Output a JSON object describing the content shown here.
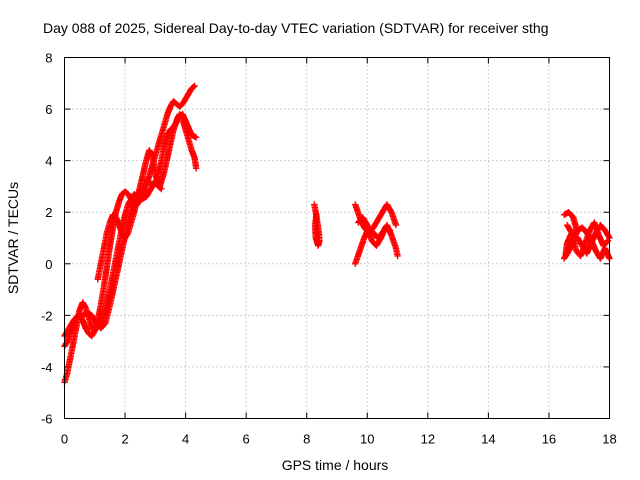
{
  "chart_data": {
    "type": "scatter",
    "title": "Day 088 of 2025, Sidereal Day-to-day VTEC variation (SDTVAR) for receiver sthg",
    "xlabel": "GPS time / hours",
    "ylabel": "SDTVAR / TECUs",
    "xlim": [
      0,
      18
    ],
    "ylim": [
      -6,
      8
    ],
    "xticks": [
      0,
      2,
      4,
      6,
      8,
      10,
      12,
      14,
      16,
      18
    ],
    "yticks": [
      -6,
      -4,
      -2,
      0,
      2,
      4,
      6,
      8
    ],
    "grid": true,
    "marker": "+",
    "color": "#ff0000",
    "series": [
      {
        "name": "SDTVAR",
        "tracks": [
          [
            [
              0.0,
              -4.6
            ],
            [
              0.1,
              -4.2
            ],
            [
              0.2,
              -3.6
            ],
            [
              0.3,
              -3.0
            ],
            [
              0.4,
              -2.4
            ],
            [
              0.5,
              -1.8
            ],
            [
              0.6,
              -1.5
            ],
            [
              0.7,
              -1.7
            ],
            [
              0.8,
              -2.1
            ],
            [
              0.9,
              -2.5
            ],
            [
              1.0,
              -2.6
            ],
            [
              1.1,
              -2.4
            ],
            [
              1.2,
              -2.2
            ],
            [
              1.3,
              -1.9
            ],
            [
              1.4,
              -1.5
            ],
            [
              1.5,
              -1.0
            ],
            [
              1.6,
              -0.4
            ],
            [
              1.7,
              0.2
            ],
            [
              1.8,
              0.8
            ],
            [
              1.9,
              1.4
            ],
            [
              2.0,
              1.9
            ],
            [
              2.1,
              2.3
            ],
            [
              2.2,
              2.5
            ],
            [
              2.3,
              2.7
            ],
            [
              2.4,
              2.6
            ],
            [
              2.5,
              2.6
            ],
            [
              2.6,
              2.8
            ],
            [
              2.7,
              3.1
            ],
            [
              2.8,
              3.4
            ],
            [
              2.9,
              3.8
            ],
            [
              3.0,
              4.2
            ],
            [
              3.1,
              4.6
            ],
            [
              3.2,
              5.0
            ],
            [
              3.3,
              5.4
            ],
            [
              3.4,
              5.8
            ],
            [
              3.5,
              6.1
            ],
            [
              3.6,
              6.3
            ],
            [
              3.7,
              6.2
            ],
            [
              3.8,
              6.1
            ],
            [
              3.9,
              6.2
            ],
            [
              4.0,
              6.4
            ],
            [
              4.1,
              6.6
            ],
            [
              4.2,
              6.8
            ],
            [
              4.3,
              6.9
            ]
          ],
          [
            [
              0.0,
              -3.2
            ],
            [
              0.1,
              -3.0
            ],
            [
              0.2,
              -2.6
            ],
            [
              0.3,
              -2.3
            ],
            [
              0.4,
              -2.1
            ],
            [
              0.5,
              -2.0
            ],
            [
              0.6,
              -2.2
            ],
            [
              0.7,
              -2.5
            ],
            [
              0.8,
              -2.7
            ],
            [
              0.9,
              -2.8
            ],
            [
              1.0,
              -2.6
            ],
            [
              1.1,
              -2.2
            ],
            [
              1.2,
              -1.6
            ],
            [
              1.3,
              -0.9
            ],
            [
              1.4,
              -0.1
            ],
            [
              1.5,
              0.7
            ],
            [
              1.6,
              1.4
            ],
            [
              1.7,
              2.0
            ],
            [
              1.8,
              2.4
            ],
            [
              1.9,
              2.7
            ],
            [
              2.0,
              2.8
            ],
            [
              2.1,
              2.7
            ],
            [
              2.2,
              2.5
            ],
            [
              2.3,
              2.2
            ],
            [
              2.4,
              2.3
            ],
            [
              2.5,
              2.5
            ],
            [
              2.6,
              2.8
            ],
            [
              2.7,
              3.1
            ],
            [
              2.8,
              3.2
            ],
            [
              2.9,
              3.0
            ],
            [
              3.0,
              3.1
            ],
            [
              3.1,
              3.5
            ],
            [
              3.2,
              4.0
            ],
            [
              3.3,
              4.6
            ],
            [
              3.4,
              5.0
            ],
            [
              3.5,
              5.2
            ],
            [
              3.6,
              5.3
            ],
            [
              3.7,
              5.5
            ],
            [
              3.8,
              5.8
            ],
            [
              3.9,
              5.6
            ],
            [
              4.0,
              5.2
            ],
            [
              4.1,
              4.8
            ],
            [
              4.2,
              4.4
            ],
            [
              4.3,
              4.1
            ],
            [
              4.35,
              3.7
            ]
          ],
          [
            [
              0.0,
              -2.8
            ],
            [
              0.15,
              -2.5
            ],
            [
              0.3,
              -2.2
            ],
            [
              0.45,
              -2.0
            ],
            [
              0.6,
              -2.0
            ],
            [
              0.75,
              -1.9
            ],
            [
              0.9,
              -2.0
            ],
            [
              1.05,
              -2.3
            ],
            [
              1.2,
              -2.5
            ],
            [
              1.35,
              -2.3
            ],
            [
              1.5,
              -1.6
            ],
            [
              1.65,
              -0.8
            ],
            [
              1.8,
              0.0
            ],
            [
              1.95,
              0.8
            ],
            [
              2.1,
              1.6
            ],
            [
              2.25,
              2.3
            ],
            [
              2.4,
              2.6
            ],
            [
              2.55,
              2.5
            ],
            [
              2.7,
              2.6
            ],
            [
              2.85,
              2.9
            ],
            [
              3.0,
              3.2
            ],
            [
              3.15,
              3.0
            ],
            [
              3.3,
              3.6
            ],
            [
              3.45,
              4.4
            ],
            [
              3.6,
              5.2
            ],
            [
              3.75,
              5.7
            ],
            [
              3.9,
              5.8
            ],
            [
              4.05,
              5.4
            ],
            [
              4.2,
              5.0
            ],
            [
              4.35,
              4.9
            ]
          ],
          [
            [
              1.1,
              -0.6
            ],
            [
              1.2,
              0.0
            ],
            [
              1.3,
              0.6
            ],
            [
              1.4,
              1.2
            ],
            [
              1.5,
              1.6
            ],
            [
              1.6,
              1.9
            ],
            [
              1.7,
              1.8
            ],
            [
              1.8,
              1.5
            ],
            [
              1.9,
              1.2
            ],
            [
              2.0,
              1.0
            ],
            [
              2.1,
              1.2
            ],
            [
              2.2,
              1.6
            ],
            [
              2.3,
              2.0
            ],
            [
              2.4,
              2.5
            ],
            [
              2.5,
              3.0
            ],
            [
              2.6,
              3.5
            ],
            [
              2.7,
              4.0
            ],
            [
              2.8,
              4.4
            ],
            [
              2.9,
              4.2
            ],
            [
              3.0,
              3.5
            ],
            [
              3.1,
              3.0
            ],
            [
              3.2,
              2.9
            ]
          ],
          [
            [
              8.25,
              2.3
            ],
            [
              8.3,
              2.0
            ],
            [
              8.35,
              1.6
            ],
            [
              8.4,
              1.2
            ],
            [
              8.42,
              0.9
            ],
            [
              8.38,
              0.7
            ],
            [
              8.3,
              1.0
            ],
            [
              8.28,
              1.5
            ],
            [
              8.32,
              1.9
            ]
          ],
          [
            [
              9.6,
              0.0
            ],
            [
              9.75,
              0.5
            ],
            [
              9.9,
              1.0
            ],
            [
              10.05,
              1.4
            ],
            [
              10.2,
              1.2
            ],
            [
              10.35,
              1.0
            ],
            [
              10.5,
              1.2
            ],
            [
              10.65,
              1.5
            ],
            [
              10.8,
              1.1
            ],
            [
              10.95,
              0.6
            ],
            [
              11.0,
              0.3
            ]
          ],
          [
            [
              9.6,
              2.3
            ],
            [
              9.75,
              1.8
            ],
            [
              9.9,
              1.4
            ],
            [
              10.05,
              1.2
            ],
            [
              10.2,
              1.4
            ],
            [
              10.35,
              1.7
            ],
            [
              10.5,
              2.0
            ],
            [
              10.65,
              2.3
            ],
            [
              10.8,
              2.0
            ],
            [
              10.95,
              1.5
            ]
          ],
          [
            [
              9.7,
              1.6
            ],
            [
              9.85,
              1.8
            ],
            [
              10.0,
              1.5
            ],
            [
              10.15,
              0.9
            ],
            [
              10.3,
              0.7
            ],
            [
              10.45,
              1.0
            ],
            [
              10.6,
              1.4
            ],
            [
              10.75,
              1.3
            ]
          ],
          [
            [
              16.5,
              1.9
            ],
            [
              16.65,
              2.0
            ],
            [
              16.8,
              1.8
            ],
            [
              16.9,
              1.4
            ],
            [
              16.85,
              1.0
            ],
            [
              16.7,
              0.6
            ],
            [
              16.55,
              0.3
            ],
            [
              16.6,
              0.8
            ],
            [
              16.75,
              1.2
            ],
            [
              16.95,
              1.0
            ],
            [
              17.1,
              0.7
            ],
            [
              17.25,
              0.4
            ],
            [
              17.4,
              0.8
            ],
            [
              17.55,
              1.2
            ],
            [
              17.7,
              1.5
            ],
            [
              17.85,
              1.3
            ],
            [
              18.0,
              1.0
            ]
          ],
          [
            [
              16.5,
              0.2
            ],
            [
              16.65,
              0.5
            ],
            [
              16.8,
              0.9
            ],
            [
              16.95,
              1.3
            ],
            [
              17.1,
              1.4
            ],
            [
              17.25,
              1.2
            ],
            [
              17.4,
              0.9
            ],
            [
              17.55,
              0.5
            ],
            [
              17.7,
              0.2
            ],
            [
              17.85,
              0.6
            ],
            [
              18.0,
              0.2
            ]
          ],
          [
            [
              16.6,
              1.5
            ],
            [
              16.75,
              1.2
            ],
            [
              16.9,
              0.5
            ],
            [
              17.05,
              0.3
            ],
            [
              17.2,
              0.8
            ],
            [
              17.35,
              1.3
            ],
            [
              17.5,
              1.6
            ],
            [
              17.65,
              1.1
            ],
            [
              17.8,
              0.7
            ],
            [
              17.95,
              0.9
            ]
          ]
        ]
      }
    ]
  }
}
